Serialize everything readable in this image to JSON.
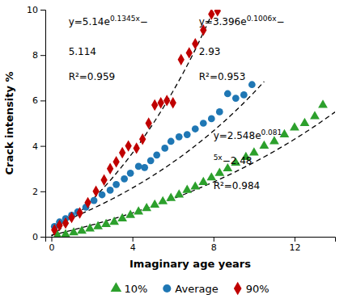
{
  "chart_data": {
    "type": "scatter",
    "x_label": "Imaginary age years",
    "y_label": "Crack intensity %",
    "xlim": [
      -0.3,
      14
    ],
    "ylim": [
      0,
      10
    ],
    "xticks": [
      0,
      4,
      8,
      12
    ],
    "yticks": [
      0,
      2,
      4,
      6,
      8,
      10
    ],
    "grid": false,
    "legend": "bottom",
    "series": [
      {
        "name": "10%",
        "color": "#2ca02c",
        "marker": "triangle",
        "x": [
          0.3,
          0.7,
          1.1,
          1.5,
          1.9,
          2.3,
          2.7,
          3.1,
          3.5,
          3.9,
          4.3,
          4.7,
          5.1,
          5.5,
          5.9,
          6.3,
          6.7,
          7.1,
          7.5,
          7.9,
          8.3,
          8.7,
          9.1,
          9.6,
          10.0,
          10.5,
          11.0,
          11.5,
          12.0,
          12.5,
          13.0,
          13.4
        ],
        "values": [
          0.05,
          0.1,
          0.18,
          0.25,
          0.35,
          0.45,
          0.55,
          0.65,
          0.8,
          0.95,
          1.1,
          1.25,
          1.4,
          1.55,
          1.7,
          1.85,
          2.05,
          2.2,
          2.4,
          2.6,
          2.8,
          3.0,
          3.25,
          3.5,
          3.7,
          4.0,
          4.2,
          4.5,
          4.8,
          5.0,
          5.3,
          5.8
        ]
      },
      {
        "name": "Average",
        "color": "#1f77b4",
        "marker": "circle",
        "x": [
          0.15,
          0.4,
          0.7,
          1.0,
          1.3,
          1.7,
          2.1,
          2.5,
          2.9,
          3.2,
          3.6,
          3.9,
          4.3,
          4.6,
          4.9,
          5.2,
          5.6,
          5.9,
          6.3,
          6.7,
          7.1,
          7.5,
          7.9,
          8.3,
          8.7,
          9.1,
          9.5,
          9.9
        ],
        "values": [
          0.45,
          0.65,
          0.8,
          0.95,
          1.1,
          1.3,
          1.6,
          1.85,
          2.05,
          2.3,
          2.55,
          2.8,
          3.1,
          3.05,
          3.35,
          3.6,
          3.9,
          4.2,
          4.4,
          4.5,
          4.75,
          5.0,
          5.2,
          5.5,
          6.3,
          6.1,
          6.25,
          6.7
        ]
      },
      {
        "name": "90%",
        "color": "#c00000",
        "marker": "diamond",
        "x": [
          0.15,
          0.4,
          0.7,
          1.0,
          1.4,
          1.8,
          2.2,
          2.6,
          2.9,
          3.2,
          3.5,
          3.8,
          4.2,
          4.5,
          4.8,
          5.1,
          5.4,
          5.7,
          6.0,
          6.4,
          6.8,
          7.1,
          7.5,
          7.9,
          8.2
        ],
        "values": [
          0.3,
          0.5,
          0.6,
          0.85,
          1.05,
          1.5,
          2.0,
          2.5,
          3.0,
          3.3,
          3.7,
          4.0,
          3.9,
          4.3,
          5.0,
          5.8,
          5.9,
          6.0,
          5.9,
          7.8,
          8.1,
          8.5,
          9.1,
          9.8,
          9.95
        ]
      }
    ],
    "fits": [
      {
        "type": "line",
        "color": "black",
        "line_style": "dashed",
        "x": [
          0,
          1,
          2,
          3,
          4,
          5,
          6,
          7,
          8,
          9,
          10,
          11,
          12,
          13,
          14
        ],
        "values": [
          0.068,
          0.2844,
          0.5191,
          0.7738,
          1.05,
          1.3498,
          1.675,
          2.0278,
          2.4106,
          2.8258,
          3.2764,
          3.7652,
          4.2955,
          4.8708,
          5.495
        ]
      },
      {
        "type": "line",
        "color": "black",
        "line_style": "dashed",
        "x": [
          0,
          1,
          2,
          3,
          4,
          5,
          6,
          7,
          8,
          9,
          10,
          10.5
        ],
        "values": [
          0.466,
          0.8254,
          1.2229,
          1.6624,
          2.1484,
          2.6859,
          3.2802,
          3.9375,
          4.6643,
          5.468,
          6.3568,
          6.8359
        ]
      },
      {
        "type": "line",
        "color": "black",
        "line_style": "dashed",
        "x": [
          0,
          1,
          2,
          3,
          4,
          5,
          6,
          7,
          8
        ],
        "values": [
          0.026,
          0.766,
          1.6125,
          2.5809,
          3.6887,
          4.9559,
          6.4057,
          8.0641,
          9.9612
        ]
      }
    ],
    "annotations": [
      {
        "parts": [
          {
            "text": "y=5.14e"
          },
          {
            "superscript": "0.1345x"
          },
          {
            "text": "−"
          }
        ]
      },
      {
        "parts": [
          {
            "text": "5.114"
          }
        ]
      },
      {
        "parts": [
          {
            "text": "R²=0.959"
          }
        ]
      },
      {
        "parts": [
          {
            "text": "y=3.396e"
          },
          {
            "superscript": "0.1006x"
          },
          {
            "text": "−"
          }
        ]
      },
      {
        "parts": [
          {
            "text": "2.93"
          }
        ]
      },
      {
        "parts": [
          {
            "text": "R²=0.953"
          }
        ]
      },
      {
        "parts": [
          {
            "text": "y=2.548e"
          },
          {
            "superscript": "0.081"
          }
        ]
      },
      {
        "parts": [
          {
            "superscript": "5x"
          },
          {
            "text": "−2.48"
          }
        ]
      },
      {
        "parts": [
          {
            "text": "R²=0.984"
          }
        ]
      }
    ]
  }
}
